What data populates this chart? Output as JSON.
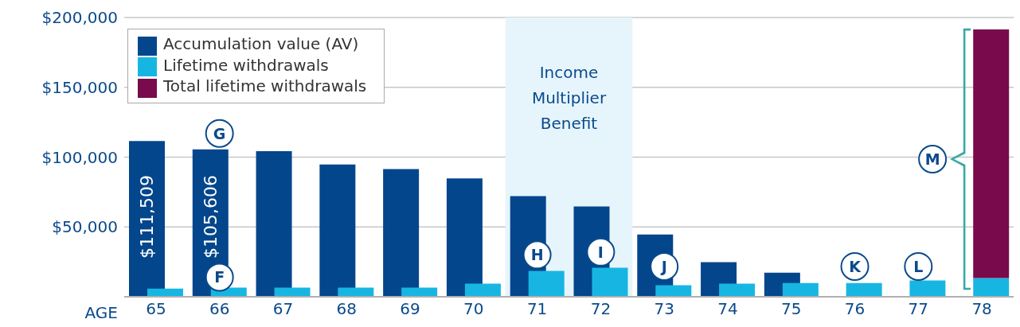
{
  "chart_data": {
    "type": "bar",
    "xlabel": "AGE",
    "categories": [
      "65",
      "66",
      "67",
      "68",
      "69",
      "70",
      "71",
      "72",
      "73",
      "74",
      "75",
      "76",
      "77",
      "78"
    ],
    "series": [
      {
        "name": "Accumulation value (AV)",
        "color": "#03468c",
        "values": [
          111509,
          105606,
          104300,
          94700,
          91500,
          84700,
          72100,
          64700,
          44600,
          24800,
          17300,
          null,
          null,
          null
        ],
        "value_labels": [
          "$111,509",
          "$105,606",
          null,
          null,
          null,
          null,
          null,
          null,
          null,
          null,
          null,
          null,
          null,
          null
        ]
      },
      {
        "name": "Lifetime withdrawals",
        "color": "#17b6e2",
        "values": [
          5900,
          6600,
          6600,
          6600,
          6600,
          9400,
          18500,
          20800,
          8200,
          9400,
          9900,
          9900,
          11700,
          13400
        ]
      },
      {
        "name": "Total lifetime withdrawals",
        "color": "#790a4b",
        "values": [
          null,
          null,
          null,
          null,
          null,
          null,
          null,
          null,
          null,
          null,
          null,
          null,
          null,
          178000
        ],
        "base": [
          null,
          null,
          null,
          null,
          null,
          null,
          null,
          null,
          null,
          null,
          null,
          null,
          null,
          13400
        ]
      }
    ],
    "ylim": [
      0,
      200000
    ],
    "yticks": [
      {
        "value": 0,
        "label": null
      },
      {
        "value": 50000,
        "label": "$50,000"
      },
      {
        "value": 100000,
        "label": "$100,000"
      },
      {
        "value": 150000,
        "label": "$150,000"
      },
      {
        "value": 200000,
        "label": "$200,000"
      }
    ],
    "grid": "y",
    "legend": "top left",
    "bands": [
      {
        "axis": "x",
        "from": "71",
        "to": "72",
        "label": "Income Multiplier Benefit",
        "color": "#e6f5fc"
      }
    ],
    "annotations": [
      {
        "text": "G",
        "x": "66",
        "y": 117000
      },
      {
        "text": "F",
        "x": "66",
        "y": 14000
      },
      {
        "text": "H",
        "x": "71",
        "y": 30000
      },
      {
        "text": "I",
        "x": "72",
        "y": 32000
      },
      {
        "text": "J",
        "x": "73",
        "y": 21700
      },
      {
        "text": "K",
        "x": "76",
        "y": 21700
      },
      {
        "text": "L",
        "x": "77",
        "y": 21700
      },
      "M"
    ]
  }
}
